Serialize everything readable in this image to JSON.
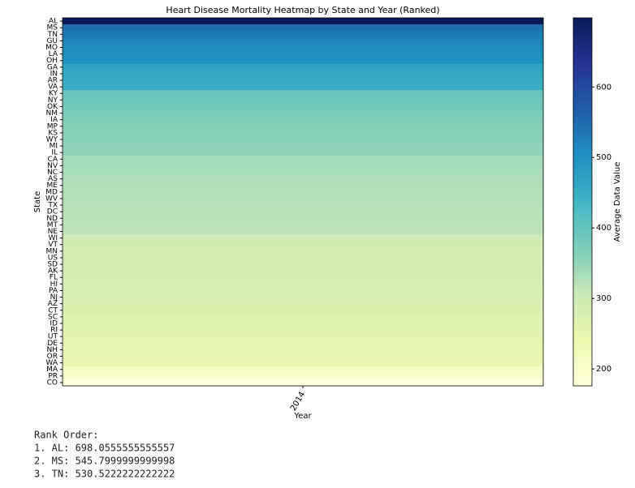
{
  "chart_data": {
    "type": "heatmap",
    "title": "Heart Disease Mortality Heatmap by State and Year (Ranked)",
    "xlabel": "Year",
    "ylabel": "State",
    "x_categories": [
      "2014"
    ],
    "y_categories": [
      "AL",
      "MS",
      "TN",
      "GU",
      "MO",
      "LA",
      "OH",
      "GA",
      "IN",
      "AR",
      "VA",
      "KY",
      "NY",
      "OK",
      "NM",
      "IA",
      "MP",
      "KS",
      "WY",
      "MI",
      "IL",
      "CA",
      "NV",
      "NC",
      "AS",
      "ME",
      "MD",
      "WV",
      "TX",
      "DC",
      "ND",
      "MT",
      "NE",
      "WI",
      "VT",
      "MN",
      "US",
      "SD",
      "AK",
      "FL",
      "HI",
      "PA",
      "NJ",
      "AZ",
      "CT",
      "SC",
      "ID",
      "RI",
      "UT",
      "DE",
      "NH",
      "OR",
      "WA",
      "MA",
      "PR",
      "CO"
    ],
    "values": [
      [
        698.0555555555557
      ],
      [
        545.7999999999998
      ],
      [
        530.5222222222222
      ],
      [
        520
      ],
      [
        510
      ],
      [
        505
      ],
      [
        500
      ],
      [
        470
      ],
      [
        460
      ],
      [
        455
      ],
      [
        450
      ],
      [
        395
      ],
      [
        390
      ],
      [
        385
      ],
      [
        375
      ],
      [
        370
      ],
      [
        365
      ],
      [
        362
      ],
      [
        360
      ],
      [
        358
      ],
      [
        355
      ],
      [
        340
      ],
      [
        338
      ],
      [
        335
      ],
      [
        332
      ],
      [
        330
      ],
      [
        328
      ],
      [
        326
      ],
      [
        324
      ],
      [
        322
      ],
      [
        320
      ],
      [
        318
      ],
      [
        315
      ],
      [
        295
      ],
      [
        293
      ],
      [
        290
      ],
      [
        288
      ],
      [
        286
      ],
      [
        284
      ],
      [
        282
      ],
      [
        280
      ],
      [
        278
      ],
      [
        276
      ],
      [
        274
      ],
      [
        272
      ],
      [
        265
      ],
      [
        262
      ],
      [
        260
      ],
      [
        258
      ],
      [
        255
      ],
      [
        252
      ],
      [
        250
      ],
      [
        248
      ],
      [
        210
      ],
      [
        200
      ],
      [
        176
      ]
    ],
    "colormap": "YlGnBu",
    "colorbar_label": "Average Data Value",
    "clim": [
      176,
      698.0555555555557
    ],
    "cticks": [
      200,
      300,
      400,
      500,
      600
    ]
  },
  "rank_order": {
    "title": "Rank Order:",
    "items": [
      "1. AL: 698.0555555555557",
      "2. MS: 545.7999999999998",
      "3. TN: 530.5222222222222"
    ]
  }
}
